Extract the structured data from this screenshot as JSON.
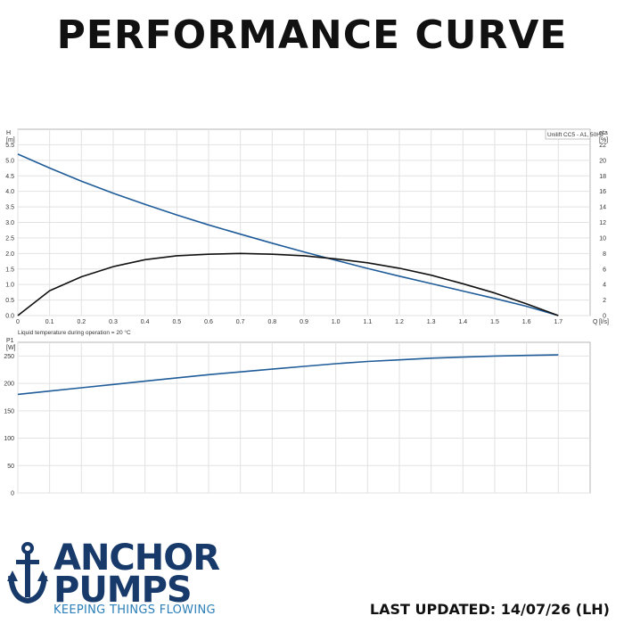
{
  "page": {
    "title": "PERFORMANCE CURVE",
    "last_updated": "LAST UPDATED: 14/07/26 (LH)"
  },
  "brand": {
    "icon": "anchor-icon",
    "name_line1": "ANCHOR",
    "name_line2": "PUMPS",
    "tagline": "KEEPING THINGS FLOWING",
    "colors": {
      "navy": "#173a6b",
      "blue": "#2c7fb8"
    }
  },
  "chart_data": [
    {
      "type": "line",
      "legend": "Unilift CC5 - A1, 50Hz",
      "ylabel": "H",
      "yunit": "[m]",
      "y2label": "eta",
      "y2unit": "[%]",
      "xlabel": "Q",
      "xunit": "[l/s]",
      "xlim": [
        0,
        1.8
      ],
      "xticks": [
        0,
        0.1,
        0.2,
        0.3,
        0.4,
        0.5,
        0.6,
        0.7,
        0.8,
        0.9,
        1.0,
        1.1,
        1.2,
        1.3,
        1.4,
        1.5,
        1.6,
        1.7
      ],
      "ylim": [
        0,
        6.0
      ],
      "yticks": [
        0.0,
        0.5,
        1.0,
        1.5,
        2.0,
        2.5,
        3.0,
        3.5,
        4.0,
        4.5,
        5.0,
        5.5
      ],
      "y2lim": [
        0,
        24
      ],
      "y2ticks": [
        0,
        2,
        4,
        6,
        8,
        10,
        12,
        14,
        16,
        18,
        20,
        22
      ],
      "grid": true,
      "series": [
        {
          "axis": "left",
          "color": "#1f5c99",
          "x": [
            0,
            0.1,
            0.2,
            0.3,
            0.4,
            0.5,
            0.6,
            0.7,
            0.8,
            0.9,
            1.0,
            1.1,
            1.2,
            1.3,
            1.4,
            1.5,
            1.6,
            1.7
          ],
          "y": [
            5.2,
            4.75,
            4.33,
            3.94,
            3.58,
            3.24,
            2.92,
            2.62,
            2.33,
            2.05,
            1.78,
            1.52,
            1.27,
            1.03,
            0.79,
            0.55,
            0.3,
            0.0
          ]
        },
        {
          "axis": "right",
          "color": "#111111",
          "x": [
            0,
            0.1,
            0.2,
            0.3,
            0.4,
            0.5,
            0.6,
            0.7,
            0.8,
            0.9,
            1.0,
            1.1,
            1.2,
            1.3,
            1.4,
            1.5,
            1.6,
            1.7
          ],
          "y": [
            0.0,
            3.2,
            5.0,
            6.3,
            7.2,
            7.7,
            7.9,
            8.0,
            7.9,
            7.7,
            7.3,
            6.8,
            6.1,
            5.2,
            4.1,
            2.9,
            1.5,
            0.0
          ]
        }
      ]
    },
    {
      "type": "line",
      "annotation": "Liquid temperature during operation = 20 °C",
      "ylabel": "P1",
      "yunit": "[W]",
      "xlim": [
        0,
        1.8
      ],
      "ylim": [
        0,
        275
      ],
      "yticks": [
        0,
        50,
        100,
        150,
        200,
        250
      ],
      "grid": true,
      "series": [
        {
          "color": "#1f5c99",
          "x": [
            0,
            0.1,
            0.2,
            0.3,
            0.4,
            0.5,
            0.6,
            0.7,
            0.8,
            0.9,
            1.0,
            1.1,
            1.2,
            1.3,
            1.4,
            1.5,
            1.6,
            1.7
          ],
          "y": [
            180,
            186,
            192,
            198,
            204,
            210,
            216,
            221,
            226,
            231,
            236,
            240,
            243,
            246,
            248,
            250,
            251,
            252
          ]
        }
      ]
    }
  ]
}
